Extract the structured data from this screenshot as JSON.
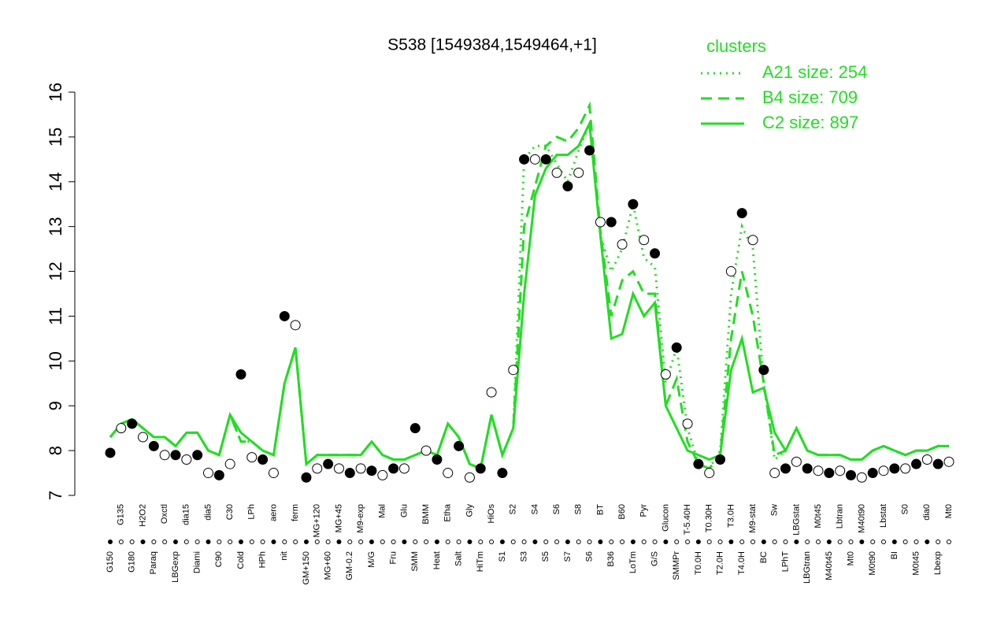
{
  "chart_data": {
    "type": "line",
    "title": "S538 [1549384,1549464,+1]",
    "legend_title": "clusters",
    "legend_position": "top-right",
    "ylim": [
      7,
      16
    ],
    "yticks": [
      7,
      8,
      9,
      10,
      11,
      12,
      13,
      14,
      15,
      16
    ],
    "categories": [
      "G150",
      "G135",
      "G180",
      "H2O2",
      "Paraq",
      "Oxctl",
      "LBGexp",
      "dia15",
      "Diami",
      "dia5",
      "C90",
      "C30",
      "Cold",
      "LPh",
      "HPh",
      "aero",
      "nit",
      "ferm",
      "GM+150",
      "MG+120",
      "MG+60",
      "MG+45",
      "GM-0.2",
      "M9-exp",
      "M/G",
      "Mal",
      "Fru",
      "Glu",
      "SMM",
      "BMM",
      "Heat",
      "Etha",
      "Salt",
      "Gly",
      "HiTm",
      "HiOs",
      "S1",
      "S2",
      "S3",
      "S4",
      "S5",
      "S6",
      "S7",
      "S8",
      "S6",
      "BT",
      "B36",
      "B60",
      "LoTm",
      "Pyr",
      "G/S",
      "Glucon",
      "SMMPr",
      "T-5.40H",
      "T0.0H",
      "T0.30H",
      "T2.0H",
      "T3.0H",
      "T4.0H",
      "M9-stat",
      "BC",
      "Sw",
      "LPhT",
      "LBGstat",
      "LBGtran",
      "M0t45",
      "M40t45",
      "Lbtran",
      "Mt0",
      "M40t90",
      "M0t90",
      "Lbstat",
      "BI",
      "S0",
      "M0t45",
      "dia0",
      "Lbexp",
      "Mt0"
    ],
    "points": {
      "color": "#000000",
      "values": [
        7.95,
        8.5,
        8.6,
        8.3,
        8.1,
        7.9,
        7.9,
        7.8,
        7.9,
        7.5,
        7.45,
        7.7,
        9.7,
        7.85,
        7.8,
        7.5,
        11.0,
        10.8,
        7.4,
        7.6,
        7.7,
        7.6,
        7.5,
        7.6,
        7.55,
        7.45,
        7.6,
        7.6,
        8.5,
        8.0,
        7.8,
        7.5,
        8.1,
        7.4,
        7.6,
        9.3,
        7.5,
        9.8,
        14.5,
        14.5,
        14.5,
        14.2,
        13.9,
        14.2,
        14.7,
        13.1,
        13.1,
        12.6,
        13.5,
        12.7,
        12.4,
        9.7,
        10.3,
        8.6,
        7.7,
        7.5,
        7.8,
        12.0,
        13.3,
        12.7,
        9.8,
        7.5,
        7.6,
        7.75,
        7.6,
        7.55,
        7.5,
        7.55,
        7.45,
        7.4,
        7.5,
        7.55,
        7.6,
        7.6,
        7.7,
        7.8,
        7.7,
        7.75
      ]
    },
    "series": [
      {
        "name": "A21 size: 254",
        "color": "#22dd22",
        "style": "dotted",
        "values": [
          8.3,
          8.6,
          8.7,
          8.5,
          8.3,
          8.3,
          8.1,
          8.4,
          8.4,
          8.0,
          7.9,
          8.8,
          8.2,
          8.2,
          8.0,
          7.9,
          9.5,
          10.3,
          7.7,
          7.9,
          7.9,
          7.9,
          7.9,
          7.9,
          8.2,
          7.9,
          7.8,
          7.8,
          7.9,
          8.0,
          7.9,
          8.6,
          8.3,
          7.7,
          7.6,
          8.8,
          7.9,
          8.5,
          14.5,
          14.8,
          14.8,
          14.4,
          14.0,
          14.7,
          15.3,
          12.8,
          12.0,
          12.5,
          13.5,
          12.3,
          12.1,
          9.5,
          10.3,
          8.5,
          7.7,
          7.6,
          8.0,
          11.5,
          13.0,
          12.5,
          9.5,
          7.8,
          8.0,
          8.5,
          8.0,
          7.9,
          7.9,
          7.9,
          7.8,
          7.8,
          8.0,
          8.1,
          8.0,
          7.9,
          8.0,
          8.0,
          8.1,
          8.1
        ]
      },
      {
        "name": "B4 size: 709",
        "color": "#22dd22",
        "style": "dashed",
        "values": [
          8.3,
          8.6,
          8.7,
          8.5,
          8.3,
          8.3,
          8.1,
          8.4,
          8.4,
          8.0,
          7.9,
          8.8,
          8.2,
          8.2,
          8.0,
          7.9,
          9.5,
          10.3,
          7.7,
          7.9,
          7.9,
          7.9,
          7.9,
          7.9,
          8.2,
          7.9,
          7.8,
          7.8,
          7.9,
          8.0,
          7.9,
          8.6,
          8.3,
          7.7,
          7.6,
          8.8,
          7.9,
          8.5,
          13.0,
          13.9,
          14.8,
          15.0,
          14.9,
          15.2,
          15.7,
          12.9,
          11.0,
          11.8,
          12.0,
          11.5,
          11.5,
          9.0,
          9.6,
          8.2,
          7.7,
          7.6,
          7.9,
          10.5,
          12.0,
          11.0,
          9.5,
          7.9,
          8.0,
          8.5,
          8.0,
          7.9,
          7.9,
          7.9,
          7.8,
          7.8,
          8.0,
          8.1,
          8.0,
          7.9,
          8.0,
          8.0,
          8.1,
          8.1
        ]
      },
      {
        "name": "C2 size: 897",
        "color": "#22dd22",
        "style": "solid",
        "values": [
          8.3,
          8.6,
          8.7,
          8.5,
          8.3,
          8.3,
          8.1,
          8.4,
          8.4,
          8.0,
          7.9,
          8.8,
          8.4,
          8.2,
          8.0,
          7.9,
          9.5,
          10.3,
          7.7,
          7.9,
          7.9,
          7.9,
          7.9,
          7.9,
          8.2,
          7.9,
          7.8,
          7.8,
          7.9,
          8.0,
          7.9,
          8.6,
          8.3,
          7.7,
          7.6,
          8.8,
          7.9,
          8.5,
          11.5,
          13.7,
          14.3,
          14.6,
          14.6,
          14.8,
          15.3,
          12.8,
          10.5,
          10.6,
          11.5,
          11.0,
          11.3,
          9.0,
          8.5,
          8.0,
          7.9,
          7.8,
          7.9,
          9.8,
          10.5,
          9.3,
          9.4,
          8.4,
          8.0,
          8.5,
          8.0,
          7.9,
          7.9,
          7.9,
          7.8,
          7.8,
          8.0,
          8.1,
          8.0,
          7.9,
          8.0,
          8.0,
          8.1,
          8.1
        ]
      }
    ]
  }
}
